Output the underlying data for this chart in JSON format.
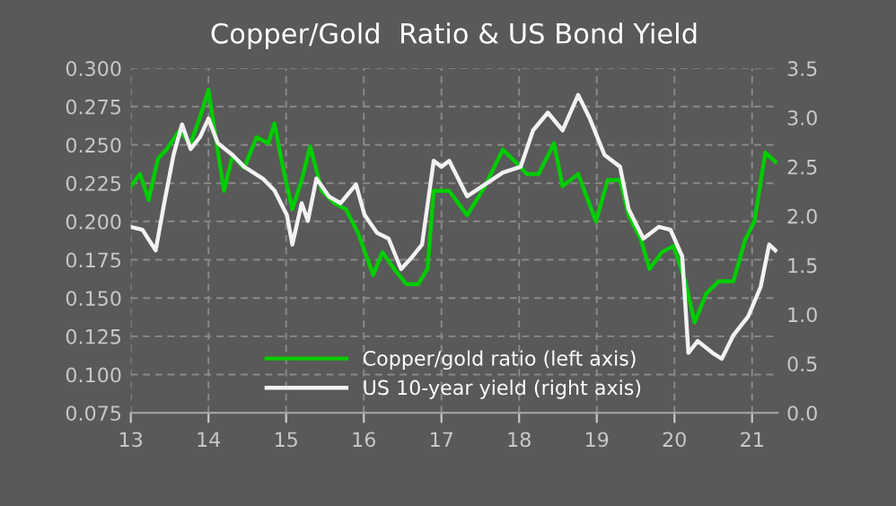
{
  "chart_data": {
    "type": "line",
    "title": "Copper/Gold  Ratio & US Bond Yield",
    "xlim": [
      13,
      21.33
    ],
    "xticks": [
      13,
      14,
      15,
      16,
      17,
      18,
      19,
      20,
      21
    ],
    "ylim": [
      0.075,
      0.3
    ],
    "yticks": [
      {
        "value": 0.075,
        "label": "0.075"
      },
      {
        "value": 0.1,
        "label": "0.100"
      },
      {
        "value": 0.125,
        "label": "0.125"
      },
      {
        "value": 0.15,
        "label": "0.150"
      },
      {
        "value": 0.175,
        "label": "0.175"
      },
      {
        "value": 0.2,
        "label": "0.200"
      },
      {
        "value": 0.225,
        "label": "0.225"
      },
      {
        "value": 0.25,
        "label": "0.250"
      },
      {
        "value": 0.275,
        "label": "0.275"
      },
      {
        "value": 0.3,
        "label": "0.300"
      }
    ],
    "y2lim": [
      0,
      3.5
    ],
    "y2ticks": [
      {
        "value": 0,
        "label": "0.0"
      },
      {
        "value": 0.5,
        "label": "0.5"
      },
      {
        "value": 1,
        "label": "1.0"
      },
      {
        "value": 1.5,
        "label": "1.5"
      },
      {
        "value": 2,
        "label": "2.0"
      },
      {
        "value": 2.5,
        "label": "2.5"
      },
      {
        "value": 3,
        "label": "3.0"
      },
      {
        "value": 3.5,
        "label": "3.5"
      }
    ],
    "grid": true,
    "legend": "bottom",
    "marker": "none",
    "line_style": "solid",
    "series": [
      {
        "name": "Copper/gold ratio (left axis)",
        "color": "#00cc00",
        "x": [
          13.0,
          13.12,
          13.23,
          13.35,
          13.46,
          13.62,
          13.77,
          13.89,
          14.0,
          14.08,
          14.2,
          14.31,
          14.46,
          14.62,
          14.77,
          14.85,
          14.96,
          15.08,
          15.2,
          15.31,
          15.46,
          15.62,
          15.77,
          15.93,
          16.12,
          16.24,
          16.39,
          16.55,
          16.7,
          16.82,
          16.9,
          17.02,
          17.1,
          17.33,
          17.56,
          17.79,
          17.95,
          18.1,
          18.25,
          18.45,
          18.56,
          18.76,
          18.99,
          19.14,
          19.3,
          19.41,
          19.57,
          19.68,
          19.84,
          19.99,
          20.14,
          20.26,
          20.41,
          20.57,
          20.76,
          20.91,
          21.03,
          21.17,
          21.3
        ],
        "values": [
          0.223,
          0.231,
          0.214,
          0.241,
          0.247,
          0.259,
          0.251,
          0.268,
          0.286,
          0.259,
          0.22,
          0.243,
          0.235,
          0.255,
          0.251,
          0.264,
          0.235,
          0.208,
          0.227,
          0.249,
          0.22,
          0.212,
          0.208,
          0.192,
          0.165,
          0.18,
          0.169,
          0.159,
          0.159,
          0.169,
          0.22,
          0.22,
          0.22,
          0.204,
          0.223,
          0.247,
          0.239,
          0.231,
          0.231,
          0.251,
          0.223,
          0.231,
          0.2,
          0.227,
          0.227,
          0.204,
          0.188,
          0.169,
          0.18,
          0.184,
          0.161,
          0.134,
          0.153,
          0.161,
          0.161,
          0.188,
          0.2,
          0.245,
          0.239
        ]
      },
      {
        "name": "US 10-year yield (right axis)",
        "color": "#f2f2f2",
        "axis": "y2",
        "x": [
          13.0,
          13.15,
          13.32,
          13.43,
          13.55,
          13.66,
          13.77,
          13.89,
          14.0,
          14.12,
          14.31,
          14.46,
          14.7,
          14.85,
          15.01,
          15.08,
          15.2,
          15.28,
          15.39,
          15.55,
          15.7,
          15.9,
          16.01,
          16.17,
          16.32,
          16.48,
          16.63,
          16.75,
          16.9,
          17.0,
          17.1,
          17.33,
          17.56,
          17.79,
          18.02,
          18.18,
          18.37,
          18.56,
          18.76,
          18.91,
          19.1,
          19.3,
          19.41,
          19.6,
          19.8,
          19.95,
          20.1,
          20.18,
          20.3,
          20.49,
          20.61,
          20.76,
          20.95,
          21.11,
          21.22,
          21.3
        ],
        "values": [
          1.89,
          1.86,
          1.65,
          2.13,
          2.62,
          2.93,
          2.68,
          2.8,
          2.99,
          2.74,
          2.62,
          2.5,
          2.38,
          2.26,
          2.01,
          1.71,
          2.13,
          1.95,
          2.38,
          2.2,
          2.13,
          2.32,
          2.01,
          1.83,
          1.77,
          1.46,
          1.59,
          1.71,
          2.56,
          2.5,
          2.56,
          2.2,
          2.32,
          2.44,
          2.5,
          2.87,
          3.05,
          2.87,
          3.23,
          2.99,
          2.62,
          2.5,
          2.07,
          1.77,
          1.89,
          1.86,
          1.59,
          0.61,
          0.73,
          0.61,
          0.55,
          0.79,
          0.98,
          1.28,
          1.71,
          1.65
        ]
      }
    ]
  }
}
